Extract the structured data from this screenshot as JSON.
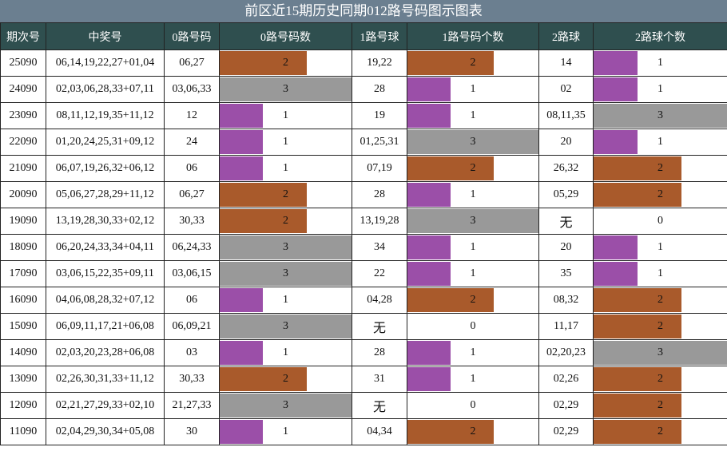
{
  "title": "前区近15期历史同期012路号码图示图表",
  "headers": [
    "期次号",
    "中奖号",
    "0路号码",
    "0路号码数",
    "1路号球",
    "1路号码个数",
    "2路球",
    "2路球个数"
  ],
  "colors": {
    "1": "#9b4fa8",
    "2": "#a95a2b",
    "3": "#999999"
  },
  "chart_data": {
    "type": "table",
    "columns": [
      "期次号",
      "中奖号",
      "0路号码",
      "0路号码数",
      "1路号球",
      "1路号码个数",
      "2路球",
      "2路球个数"
    ],
    "rows": [
      {
        "period": "25090",
        "numbers": "06,14,19,22,27+01,04",
        "r0": "06,27",
        "c0": 2,
        "r1": "19,22",
        "c1": 2,
        "r2": "14",
        "c2": 1
      },
      {
        "period": "24090",
        "numbers": "02,03,06,28,33+07,11",
        "r0": "03,06,33",
        "c0": 3,
        "r1": "28",
        "c1": 1,
        "r2": "02",
        "c2": 1
      },
      {
        "period": "23090",
        "numbers": "08,11,12,19,35+11,12",
        "r0": "12",
        "c0": 1,
        "r1": "19",
        "c1": 1,
        "r2": "08,11,35",
        "c2": 3
      },
      {
        "period": "22090",
        "numbers": "01,20,24,25,31+09,12",
        "r0": "24",
        "c0": 1,
        "r1": "01,25,31",
        "c1": 3,
        "r2": "20",
        "c2": 1
      },
      {
        "period": "21090",
        "numbers": "06,07,19,26,32+06,12",
        "r0": "06",
        "c0": 1,
        "r1": "07,19",
        "c1": 2,
        "r2": "26,32",
        "c2": 2
      },
      {
        "period": "20090",
        "numbers": "05,06,27,28,29+11,12",
        "r0": "06,27",
        "c0": 2,
        "r1": "28",
        "c1": 1,
        "r2": "05,29",
        "c2": 2
      },
      {
        "period": "19090",
        "numbers": "13,19,28,30,33+02,12",
        "r0": "30,33",
        "c0": 2,
        "r1": "13,19,28",
        "c1": 3,
        "r2": "无",
        "c2": 0
      },
      {
        "period": "18090",
        "numbers": "06,20,24,33,34+04,11",
        "r0": "06,24,33",
        "c0": 3,
        "r1": "34",
        "c1": 1,
        "r2": "20",
        "c2": 1
      },
      {
        "period": "17090",
        "numbers": "03,06,15,22,35+09,11",
        "r0": "03,06,15",
        "c0": 3,
        "r1": "22",
        "c1": 1,
        "r2": "35",
        "c2": 1
      },
      {
        "period": "16090",
        "numbers": "04,06,08,28,32+07,12",
        "r0": "06",
        "c0": 1,
        "r1": "04,28",
        "c1": 2,
        "r2": "08,32",
        "c2": 2
      },
      {
        "period": "15090",
        "numbers": "06,09,11,17,21+06,08",
        "r0": "06,09,21",
        "c0": 3,
        "r1": "无",
        "c1": 0,
        "r2": "11,17",
        "c2": 2
      },
      {
        "period": "14090",
        "numbers": "02,03,20,23,28+06,08",
        "r0": "03",
        "c0": 1,
        "r1": "28",
        "c1": 1,
        "r2": "02,20,23",
        "c2": 3
      },
      {
        "period": "13090",
        "numbers": "02,26,30,31,33+11,12",
        "r0": "30,33",
        "c0": 2,
        "r1": "31",
        "c1": 1,
        "r2": "02,26",
        "c2": 2
      },
      {
        "period": "12090",
        "numbers": "02,21,27,29,33+02,10",
        "r0": "21,27,33",
        "c0": 3,
        "r1": "无",
        "c1": 0,
        "r2": "02,29",
        "c2": 2
      },
      {
        "period": "11090",
        "numbers": "02,04,29,30,34+05,08",
        "r0": "30",
        "c0": 1,
        "r1": "04,34",
        "c1": 2,
        "r2": "02,29",
        "c2": 2
      }
    ]
  }
}
